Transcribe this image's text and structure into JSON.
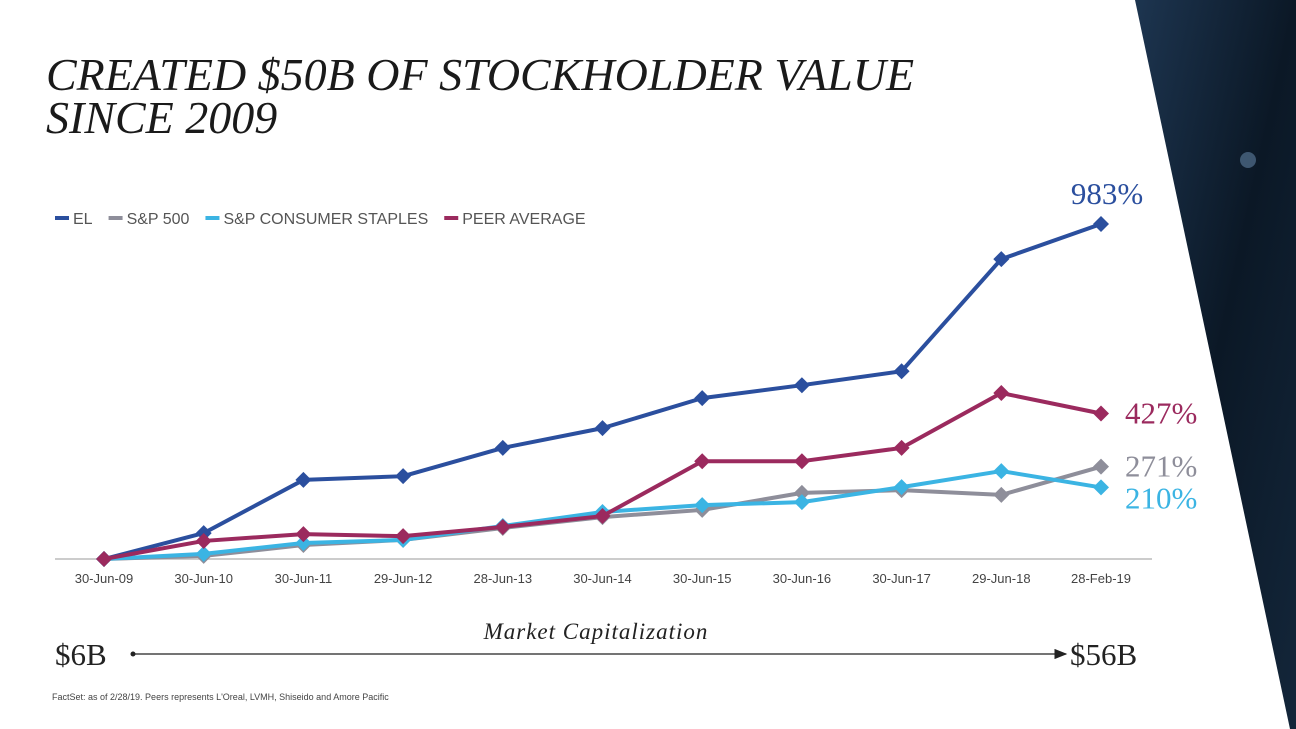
{
  "slide": {
    "title_lines": [
      "CREATED $50B OF STOCKHOLDER VALUE",
      "SINCE 2009"
    ],
    "market_cap": {
      "label": "Market Capitalization",
      "start": "$6B",
      "end": "$56B"
    },
    "footnote": "FactSet: as of 2/28/19. Peers represents L'Oreal, LVMH, Shiseido and Amore Pacific"
  },
  "chart_data": {
    "type": "line",
    "categories": [
      "30-Jun-09",
      "30-Jun-10",
      "30-Jun-11",
      "29-Jun-12",
      "28-Jun-13",
      "30-Jun-14",
      "30-Jun-15",
      "30-Jun-16",
      "30-Jun-17",
      "29-Jun-18",
      "28-Feb-19"
    ],
    "series": [
      {
        "name": "EL",
        "color": "#2b4f9e",
        "values": [
          0,
          76,
          232,
          243,
          326,
          384,
          472,
          510,
          551,
          880,
          983
        ],
        "value_labels": [
          null,
          null,
          null,
          null,
          null,
          null,
          null,
          null,
          null,
          null,
          "983%"
        ]
      },
      {
        "name": "S&P 500",
        "color": "#8e8e9a",
        "values": [
          0,
          9,
          41,
          56,
          91,
          123,
          144,
          194,
          202,
          188,
          271
        ],
        "value_labels": [
          null,
          null,
          null,
          null,
          null,
          null,
          null,
          null,
          null,
          null,
          "271%"
        ]
      },
      {
        "name": "S&P CONSUMER STAPLES",
        "color": "#3bb4e3",
        "values": [
          0,
          15,
          47,
          56,
          97,
          138,
          158,
          167,
          211,
          258,
          210
        ],
        "value_labels": [
          null,
          null,
          null,
          null,
          null,
          null,
          null,
          null,
          null,
          null,
          "210%"
        ]
      },
      {
        "name": "PEER AVERAGE",
        "color": "#9b2a5e",
        "values": [
          0,
          53,
          73,
          67,
          94,
          126,
          287,
          287,
          326,
          487,
          427
        ],
        "value_labels": [
          null,
          null,
          null,
          null,
          null,
          null,
          null,
          null,
          null,
          null,
          "427%"
        ]
      }
    ],
    "legend": "top-left"
  }
}
